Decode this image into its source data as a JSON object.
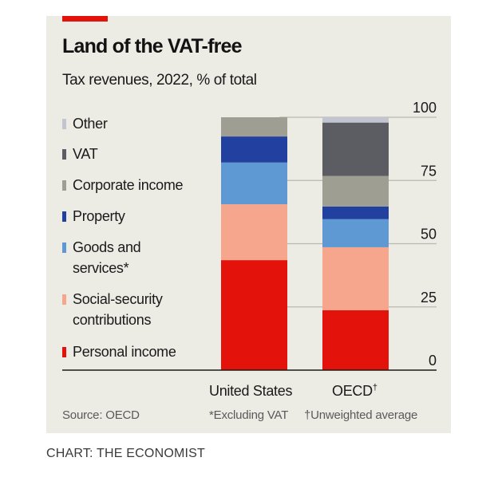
{
  "chart_data": {
    "type": "bar",
    "stacked": true,
    "title": "Land of the VAT-free",
    "subtitle": "Tax revenues, 2022, % of total",
    "categories": [
      "United States",
      "OECD†"
    ],
    "ylim": [
      0,
      100
    ],
    "yticks": [
      0,
      25,
      50,
      75,
      100
    ],
    "ytick_labels": [
      "0",
      "25",
      "50",
      "75",
      "100"
    ],
    "yaxis_position": "right",
    "grid": true,
    "legend_position": "left",
    "series": [
      {
        "name": "Personal income",
        "color": "#e3120b",
        "values": [
          43.5,
          23.7
        ]
      },
      {
        "name": "Social-security contributions",
        "color": "#f6a68c",
        "values": [
          22.1,
          24.9
        ]
      },
      {
        "name": "Goods and services*",
        "color": "#5e99d3",
        "values": [
          16.5,
          11.1
        ]
      },
      {
        "name": "Property",
        "color": "#2140a0",
        "values": [
          10.3,
          5.0
        ]
      },
      {
        "name": "Corporate income",
        "color": "#9e9e93",
        "values": [
          7.6,
          12.1
        ]
      },
      {
        "name": "VAT",
        "color": "#5c5d62",
        "values": [
          0,
          21.1
        ]
      },
      {
        "name": "Other",
        "color": "#c2c5d0",
        "values": [
          0,
          2.1
        ]
      }
    ],
    "legend_order": [
      "Other",
      "VAT",
      "Corporate income",
      "Property",
      "Goods and services*",
      "Social-security contributions",
      "Personal income"
    ],
    "notes": {
      "source": "Source: OECD",
      "footnote_star": "*Excluding VAT",
      "footnote_dagger": "†Unweighted average"
    }
  },
  "legend": [
    {
      "label": "Other",
      "color": "#c2c5d0"
    },
    {
      "label": "VAT",
      "color": "#5c5d62"
    },
    {
      "label": "Corporate income",
      "color": "#9e9e93"
    },
    {
      "label": "Property",
      "color": "#2140a0"
    },
    {
      "label": "Goods and services*",
      "color": "#5e99d3"
    },
    {
      "label": "Social-security contributions",
      "color": "#f6a68c"
    },
    {
      "label": "Personal income",
      "color": "#e3120b"
    }
  ],
  "xlabels": {
    "us": "United States",
    "oecd": "OECD",
    "oecd_mark": "†"
  },
  "credit": "CHART: THE ECONOMIST",
  "brand_color": "#e3120b",
  "panel_color": "#ecebe4"
}
